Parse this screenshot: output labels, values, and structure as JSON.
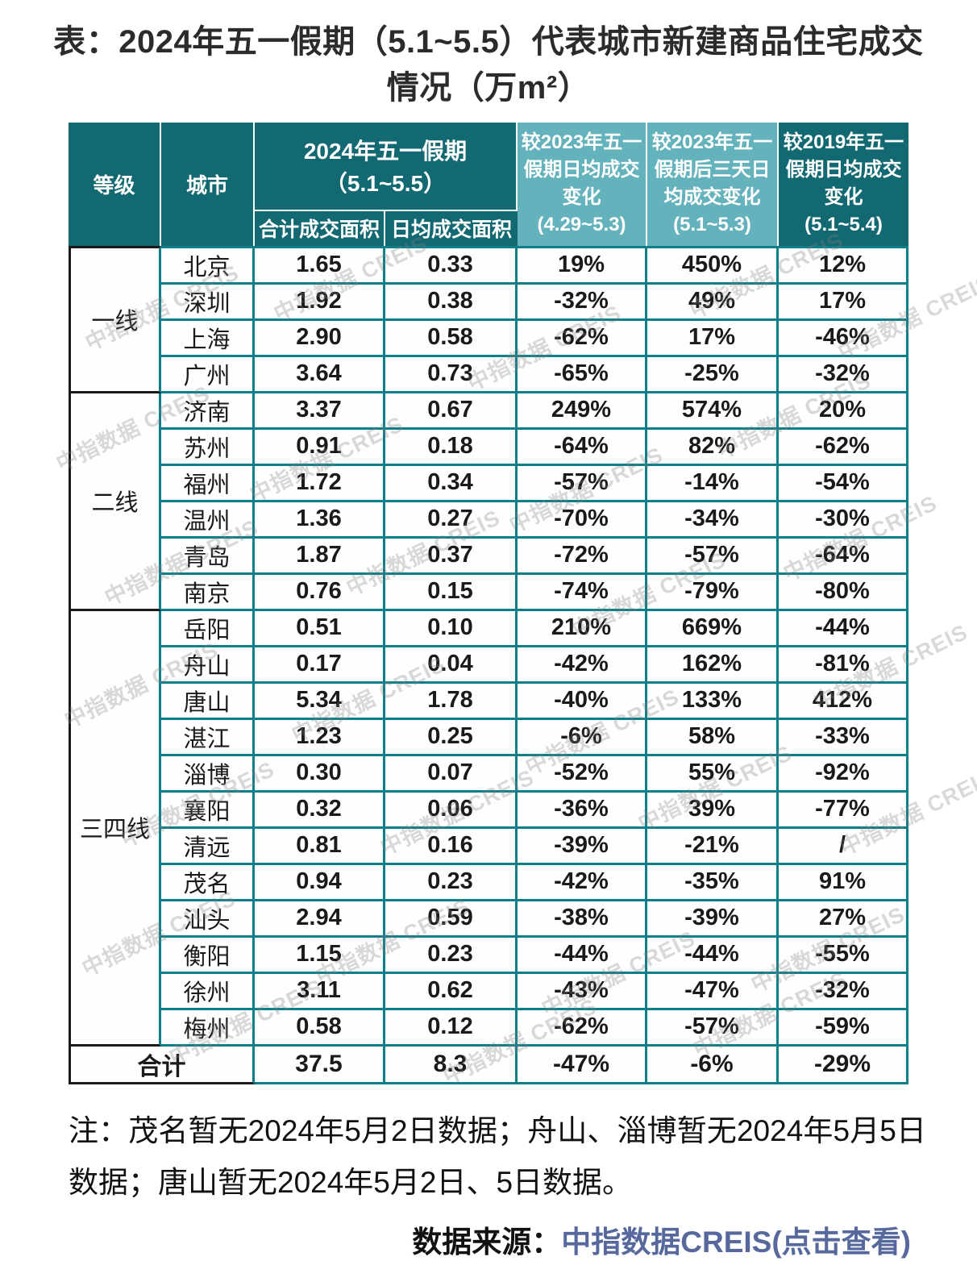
{
  "title": "表：2024年五一假期（5.1~5.5）代表城市新建商品住宅成交情况（万m²）",
  "watermark_text": "中指数据 CREIS",
  "colors": {
    "header_dark_teal": "#136972",
    "header_light_teal": "#64b2bc",
    "grid_teal": "#0e7e89",
    "accent_black": "#1a1a1a",
    "link_blue": "#56689c"
  },
  "table": {
    "headers": {
      "level": "等级",
      "city": "城市",
      "holiday_group": "2024年五一假期（5.1~5.5）",
      "total_area": "合计成交面积",
      "daily_area": "日均成交面积",
      "vs_2023_daily": "较2023年五一\n假期日均成交\n变化\n(4.29~5.3)",
      "vs_2023_after3": "较2023年五一\n假期后三天日\n均成交变化\n(5.1~5.3)",
      "vs_2019_daily": "较2019年五一\n假期日均成交\n变化\n(5.1~5.4)"
    },
    "tiers": [
      {
        "label": "一线",
        "cities": [
          {
            "name": "北京",
            "values": [
              "1.65",
              "0.33",
              "19%",
              "450%",
              "12%"
            ]
          },
          {
            "name": "深圳",
            "values": [
              "1.92",
              "0.38",
              "-32%",
              "49%",
              "17%"
            ]
          },
          {
            "name": "上海",
            "values": [
              "2.90",
              "0.58",
              "-62%",
              "17%",
              "-46%"
            ]
          },
          {
            "name": "广州",
            "values": [
              "3.64",
              "0.73",
              "-65%",
              "-25%",
              "-32%"
            ]
          }
        ]
      },
      {
        "label": "二线",
        "cities": [
          {
            "name": "济南",
            "values": [
              "3.37",
              "0.67",
              "249%",
              "574%",
              "20%"
            ]
          },
          {
            "name": "苏州",
            "values": [
              "0.91",
              "0.18",
              "-64%",
              "82%",
              "-62%"
            ]
          },
          {
            "name": "福州",
            "values": [
              "1.72",
              "0.34",
              "-57%",
              "-14%",
              "-54%"
            ]
          },
          {
            "name": "温州",
            "values": [
              "1.36",
              "0.27",
              "-70%",
              "-34%",
              "-30%"
            ]
          },
          {
            "name": "青岛",
            "values": [
              "1.87",
              "0.37",
              "-72%",
              "-57%",
              "-64%"
            ]
          },
          {
            "name": "南京",
            "values": [
              "0.76",
              "0.15",
              "-74%",
              "-79%",
              "-80%"
            ]
          }
        ]
      },
      {
        "label": "三四线",
        "cities": [
          {
            "name": "岳阳",
            "values": [
              "0.51",
              "0.10",
              "210%",
              "669%",
              "-44%"
            ]
          },
          {
            "name": "舟山",
            "values": [
              "0.17",
              "0.04",
              "-42%",
              "162%",
              "-81%"
            ]
          },
          {
            "name": "唐山",
            "values": [
              "5.34",
              "1.78",
              "-40%",
              "133%",
              "412%"
            ]
          },
          {
            "name": "湛江",
            "values": [
              "1.23",
              "0.25",
              "-6%",
              "58%",
              "-33%"
            ]
          },
          {
            "name": "淄博",
            "values": [
              "0.30",
              "0.07",
              "-52%",
              "55%",
              "-92%"
            ]
          },
          {
            "name": "襄阳",
            "values": [
              "0.32",
              "0.06",
              "-36%",
              "39%",
              "-77%"
            ]
          },
          {
            "name": "清远",
            "values": [
              "0.81",
              "0.16",
              "-39%",
              "-21%",
              "/"
            ]
          },
          {
            "name": "茂名",
            "values": [
              "0.94",
              "0.23",
              "-42%",
              "-35%",
              "91%"
            ]
          },
          {
            "name": "汕头",
            "values": [
              "2.94",
              "0.59",
              "-38%",
              "-39%",
              "27%"
            ]
          },
          {
            "name": "衡阳",
            "values": [
              "1.15",
              "0.23",
              "-44%",
              "-44%",
              "-55%"
            ]
          },
          {
            "name": "徐州",
            "values": [
              "3.11",
              "0.62",
              "-43%",
              "-47%",
              "-32%"
            ]
          },
          {
            "name": "梅州",
            "values": [
              "0.58",
              "0.12",
              "-62%",
              "-57%",
              "-59%"
            ]
          }
        ]
      }
    ],
    "total_row": {
      "label": "合计",
      "values": [
        "37.5",
        "8.3",
        "-47%",
        "-6%",
        "-29%"
      ]
    }
  },
  "note": "注：茂名暂无2024年5月2日数据；舟山、淄博暂无2024年5月5日数据；唐山暂无2024年5月2日、5日数据。",
  "source": {
    "prefix": "数据来源：",
    "link": "中指数据CREIS(点击查看)"
  }
}
